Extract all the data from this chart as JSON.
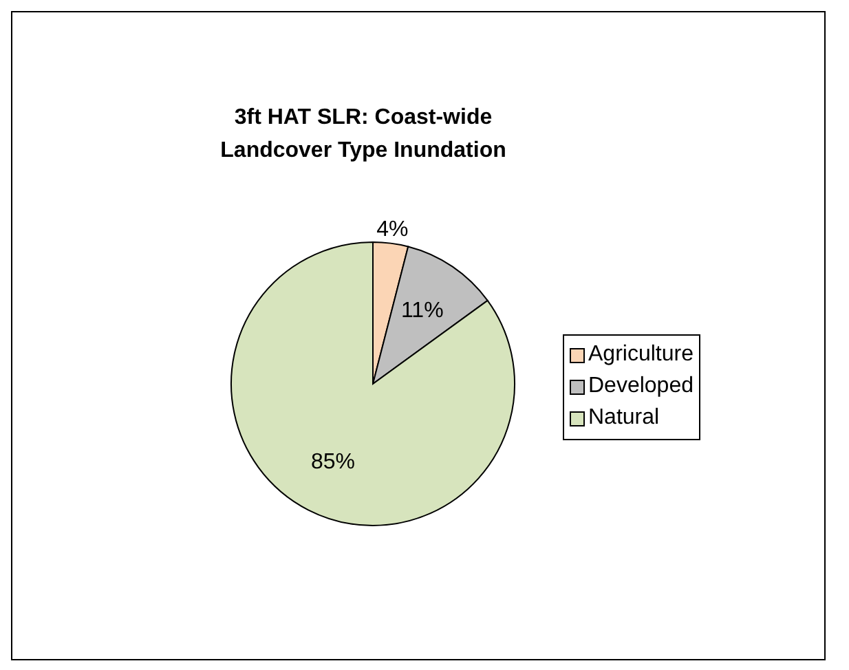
{
  "chart_data": {
    "type": "pie",
    "title": "3ft HAT SLR: Coast-wide Landcover Type Inundation",
    "categories": [
      "Agriculture",
      "Developed",
      "Natural"
    ],
    "values": [
      4,
      11,
      85
    ],
    "colors": [
      "#fbd5b5",
      "#bfbfbf",
      "#d7e4bd"
    ],
    "value_labels": [
      "4%",
      "11%",
      "85%"
    ],
    "legend": "right"
  }
}
